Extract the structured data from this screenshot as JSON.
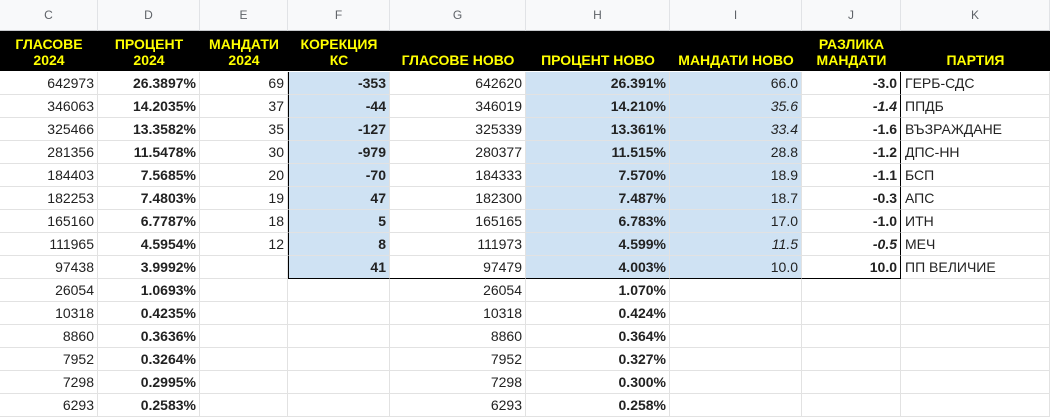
{
  "column_letters": [
    "C",
    "D",
    "E",
    "F",
    "G",
    "H",
    "I",
    "J",
    "K"
  ],
  "headers": [
    "ГЛАСОВЕ\n2024",
    "ПРОЦЕНТ\n2024",
    "МАНДАТИ\n2024",
    "КОРЕКЦИЯ\nКС",
    "ГЛАСОВЕ НОВО",
    "ПРОЦЕНТ НОВО",
    "МАНДАТИ НОВО",
    "РАЗЛИКА\nМАНДАТИ",
    "ПАРТИЯ"
  ],
  "rows": [
    [
      "642973",
      "26.3897%",
      "69",
      "-353",
      "642620",
      "26.391%",
      "66.0",
      "-3.0",
      "ГЕРБ-СДС"
    ],
    [
      "346063",
      "14.2035%",
      "37",
      "-44",
      "346019",
      "14.210%",
      "35.6",
      "-1.4",
      "ППДБ"
    ],
    [
      "325466",
      "13.3582%",
      "35",
      "-127",
      "325339",
      "13.361%",
      "33.4",
      "-1.6",
      "ВЪЗРАЖДАНЕ"
    ],
    [
      "281356",
      "11.5478%",
      "30",
      "-979",
      "280377",
      "11.515%",
      "28.8",
      "-1.2",
      "ДПС-НН"
    ],
    [
      "184403",
      "7.5685%",
      "20",
      "-70",
      "184333",
      "7.570%",
      "18.9",
      "-1.1",
      "БСП"
    ],
    [
      "182253",
      "7.4803%",
      "19",
      "47",
      "182300",
      "7.487%",
      "18.7",
      "-0.3",
      "АПС"
    ],
    [
      "165160",
      "6.7787%",
      "18",
      "5",
      "165165",
      "6.783%",
      "17.0",
      "-1.0",
      "ИТН"
    ],
    [
      "111965",
      "4.5954%",
      "12",
      "8",
      "111973",
      "4.599%",
      "11.5",
      "-0.5",
      "МЕЧ"
    ],
    [
      "97438",
      "3.9992%",
      "",
      "41",
      "97479",
      "4.003%",
      "10.0",
      "10.0",
      "ПП ВЕЛИЧИЕ"
    ],
    [
      "26054",
      "1.0693%",
      "",
      "",
      "26054",
      "1.070%",
      "",
      "",
      ""
    ],
    [
      "10318",
      "0.4235%",
      "",
      "",
      "10318",
      "0.424%",
      "",
      "",
      ""
    ],
    [
      "8860",
      "0.3636%",
      "",
      "",
      "8860",
      "0.364%",
      "",
      "",
      ""
    ],
    [
      "7952",
      "0.3264%",
      "",
      "",
      "7952",
      "0.327%",
      "",
      "",
      ""
    ],
    [
      "7298",
      "0.2995%",
      "",
      "",
      "7298",
      "0.300%",
      "",
      "",
      ""
    ],
    [
      "6293",
      "0.2583%",
      "",
      "",
      "6293",
      "0.258%",
      "",
      "",
      ""
    ]
  ],
  "italic_cells": [
    [
      1,
      6
    ],
    [
      1,
      7
    ],
    [
      2,
      6
    ],
    [
      7,
      6
    ],
    [
      7,
      7
    ]
  ],
  "colors": {
    "header_bg": "#000000",
    "header_text": "#ffff00",
    "highlight_fill": "#cfe2f3",
    "grid_line": "#e2e2e2"
  }
}
